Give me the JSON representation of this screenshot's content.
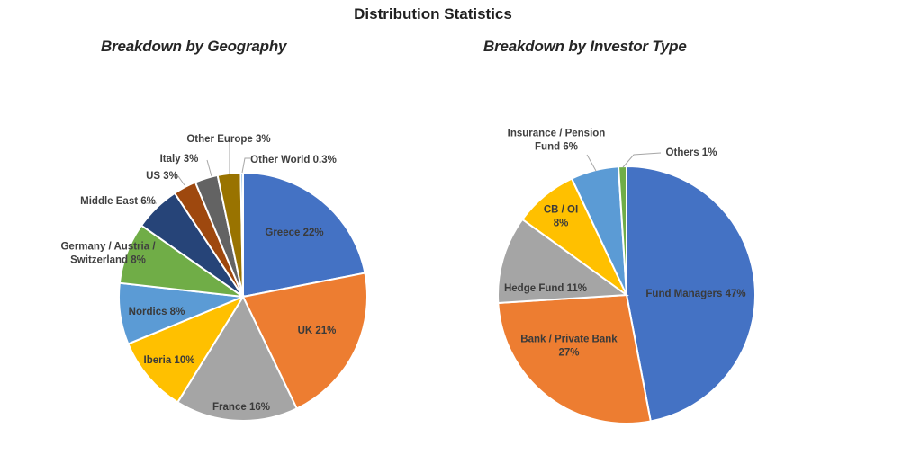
{
  "title": "Distribution Statistics",
  "chart_data": [
    {
      "type": "pie",
      "title": "Breakdown by Geography",
      "slices": [
        {
          "label": "Greece",
          "value": 22,
          "display": "Greece 22%",
          "color": "#4472C4"
        },
        {
          "label": "UK",
          "value": 21,
          "display": "UK 21%",
          "color": "#ED7D31"
        },
        {
          "label": "France",
          "value": 16,
          "display": "France 16%",
          "color": "#A5A5A5"
        },
        {
          "label": "Iberia",
          "value": 10,
          "display": "Iberia 10%",
          "color": "#FFC000"
        },
        {
          "label": "Nordics",
          "value": 8,
          "display": "Nordics 8%",
          "color": "#5B9BD5"
        },
        {
          "label": "Germany / Austria / Switzerland",
          "value": 8,
          "display": [
            "Germany / Austria /",
            "Switzerland 8%"
          ],
          "color": "#70AD47"
        },
        {
          "label": "Middle East",
          "value": 6,
          "display": "Middle East 6%",
          "color": "#264478"
        },
        {
          "label": "US",
          "value": 3,
          "display": "US 3%",
          "color": "#9E480E"
        },
        {
          "label": "Italy",
          "value": 3,
          "display": "Italy 3%",
          "color": "#636363"
        },
        {
          "label": "Other Europe",
          "value": 3,
          "display": "Other Europe 3%",
          "color": "#997300"
        },
        {
          "label": "Other World",
          "value": 0.3,
          "display": "Other World 0.3%",
          "color": "#5B9BD5"
        }
      ]
    },
    {
      "type": "pie",
      "title": "Breakdown by Investor Type",
      "slices": [
        {
          "label": "Fund Managers",
          "value": 47,
          "display": "Fund Managers 47%",
          "color": "#4472C4"
        },
        {
          "label": "Bank / Private Bank",
          "value": 27,
          "display": [
            "Bank / Private Bank",
            "27%"
          ],
          "color": "#ED7D31"
        },
        {
          "label": "Hedge Fund",
          "value": 11,
          "display": "Hedge Fund 11%",
          "color": "#A5A5A5"
        },
        {
          "label": "CB / OI",
          "value": 8,
          "display": [
            "CB / OI",
            "8%"
          ],
          "color": "#FFC000"
        },
        {
          "label": "Insurance / Pension Fund",
          "value": 6,
          "display": [
            "Insurance / Pension",
            "Fund 6%"
          ],
          "color": "#5B9BD5"
        },
        {
          "label": "Others",
          "value": 1,
          "display": "Others 1%",
          "color": "#70AD47"
        }
      ]
    }
  ]
}
